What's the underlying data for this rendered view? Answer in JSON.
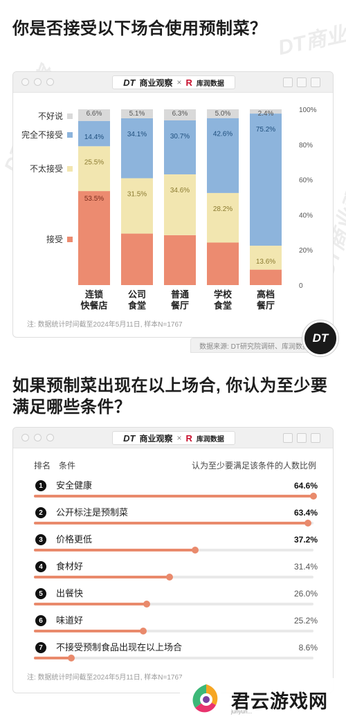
{
  "title1": "你是否接受以下场合使用预制菜？",
  "title2": "如果预制菜出现在以上场合, 你认为至少要满足哪些条件？",
  "watermark": "DT商业观察",
  "card_header": {
    "dt_logo": "DT",
    "dt_name": "商业观察",
    "times": "×",
    "kr_logo": "R",
    "kr_name": "库润数据"
  },
  "note": "注: 数据统计时间截至2024年5月11日, 样本N=1767",
  "source": "数据来源: DT研究院调研、库润数据",
  "badge": "DT",
  "colors": {
    "buhaoshuo": "#d9d9d9",
    "wanquan": "#8db4dc",
    "butai": "#f2e6b0",
    "jieshou": "#ec8b70",
    "accent": "#e98a6c"
  },
  "chart_data": [
    {
      "type": "bar",
      "stacked": true,
      "title": "你是否接受以下场合使用预制菜？",
      "categories": [
        "连锁\n快餐店",
        "公司\n食堂",
        "普通\n餐厅",
        "学校\n食堂",
        "高档\n餐厅"
      ],
      "series": [
        {
          "name": "接受",
          "values": [
            53.5,
            29.3,
            28.4,
            24.2,
            8.8
          ]
        },
        {
          "name": "不太接受",
          "values": [
            25.5,
            31.5,
            34.6,
            28.2,
            13.6
          ]
        },
        {
          "name": "完全不接受",
          "values": [
            14.4,
            34.1,
            30.7,
            42.6,
            75.2
          ]
        },
        {
          "name": "不好说",
          "values": [
            6.6,
            5.1,
            6.3,
            5.0,
            2.4
          ]
        }
      ],
      "value_labels": [
        [
          "53.5%",
          "29.3%",
          "28.4%",
          "24.2%",
          "8.8%"
        ],
        [
          "25.5%",
          "31.5%",
          "34.6%",
          "28.2%",
          "13.6%"
        ],
        [
          "14.4%",
          "34.1%",
          "30.7%",
          "42.6%",
          "75.2%"
        ],
        [
          "6.6%",
          "5.1%",
          "6.3%",
          "5.0%",
          "2.4%"
        ]
      ],
      "ylim": [
        0,
        100
      ],
      "y_ticks": [
        "0",
        "20%",
        "40%",
        "60%",
        "80%",
        "100%"
      ],
      "legend_placement": "left"
    },
    {
      "type": "bar",
      "orientation": "horizontal",
      "title": "如果预制菜出现在以上场合, 你认为至少要满足哪些条件？",
      "header": {
        "rank": "排名",
        "condition": "条件",
        "value": "认为至少要满足该条件的人数比例"
      },
      "items": [
        {
          "rank": "1",
          "label": "安全健康",
          "value": 64.6,
          "display": "64.6%"
        },
        {
          "rank": "2",
          "label": "公开标注是预制菜",
          "value": 63.4,
          "display": "63.4%"
        },
        {
          "rank": "3",
          "label": "价格更低",
          "value": 37.2,
          "display": "37.2%"
        },
        {
          "rank": "4",
          "label": "食材好",
          "value": 31.4,
          "display": "31.4%"
        },
        {
          "rank": "5",
          "label": "出餐快",
          "value": 26.0,
          "display": "26.0%"
        },
        {
          "rank": "6",
          "label": "味道好",
          "value": 25.2,
          "display": "25.2%"
        },
        {
          "rank": "7",
          "label": "不接受预制食品出现在以上场合",
          "value": 8.6,
          "display": "8.6%"
        }
      ],
      "xlim": [
        0,
        64.6
      ]
    }
  ],
  "overlay_logo": {
    "text": "君云游戏网",
    "sub": "junyun..."
  }
}
